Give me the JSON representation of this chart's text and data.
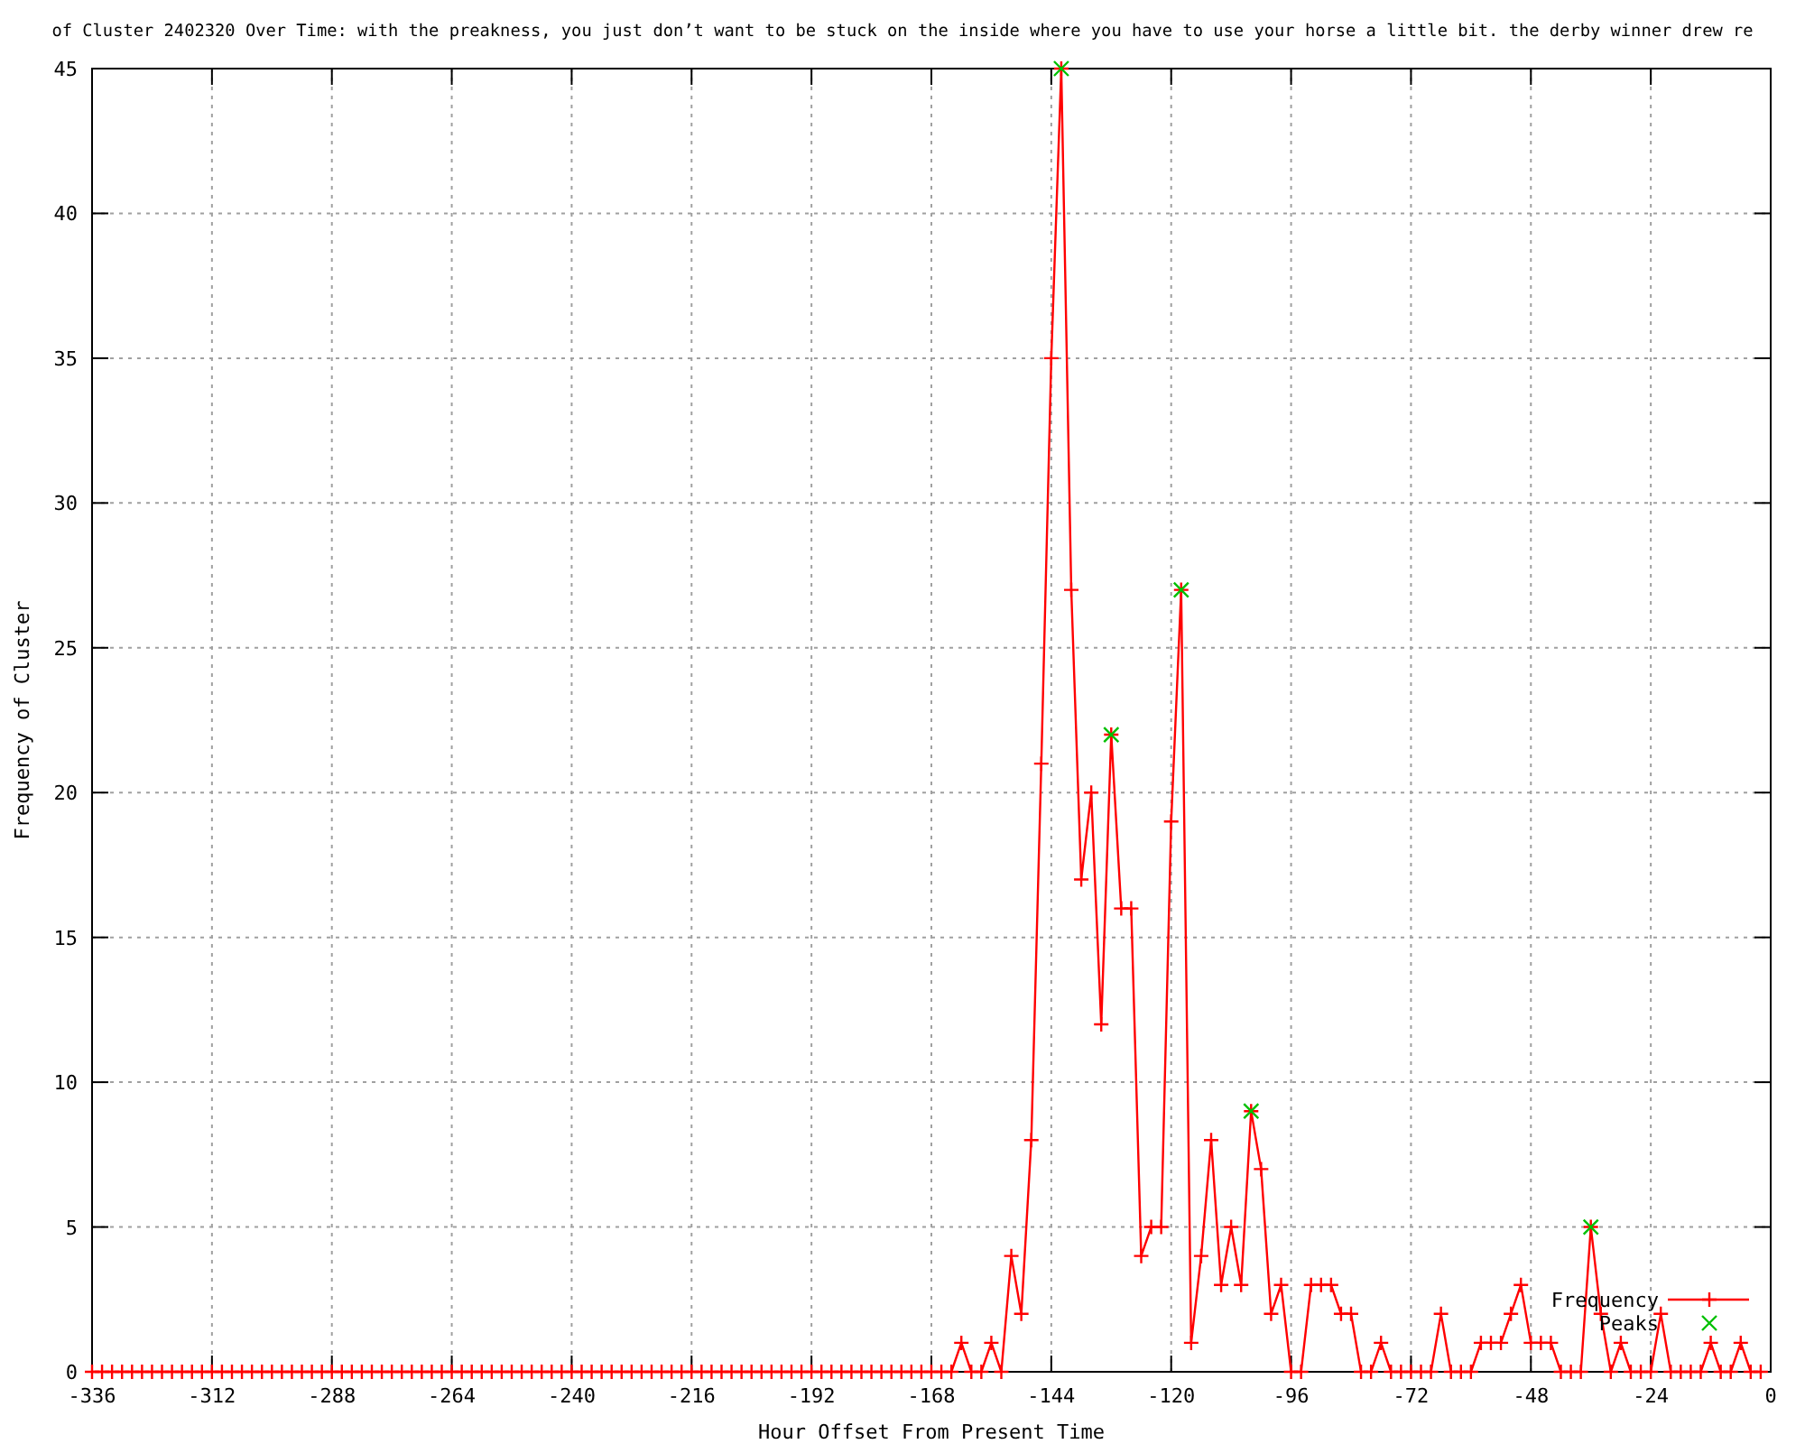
{
  "chart_data": {
    "type": "line",
    "title": "of Cluster 2402320 Over Time: with the preakness, you just don’t want to be stuck on the inside where you have to use your horse a little bit. the derby winner drew re",
    "xlabel": "Hour Offset From Present Time",
    "ylabel": "Frequency of Cluster",
    "x": [
      -336,
      -334,
      -332,
      -330,
      -328,
      -326,
      -324,
      -322,
      -320,
      -318,
      -316,
      -314,
      -312,
      -310,
      -308,
      -306,
      -304,
      -302,
      -300,
      -298,
      -296,
      -294,
      -292,
      -290,
      -288,
      -286,
      -284,
      -282,
      -280,
      -278,
      -276,
      -274,
      -272,
      -270,
      -268,
      -266,
      -264,
      -262,
      -260,
      -258,
      -256,
      -254,
      -252,
      -250,
      -248,
      -246,
      -244,
      -242,
      -240,
      -238,
      -236,
      -234,
      -232,
      -230,
      -228,
      -226,
      -224,
      -222,
      -220,
      -218,
      -216,
      -214,
      -212,
      -210,
      -208,
      -206,
      -204,
      -202,
      -200,
      -198,
      -196,
      -194,
      -192,
      -190,
      -188,
      -186,
      -184,
      -182,
      -180,
      -178,
      -176,
      -174,
      -172,
      -170,
      -168,
      -166,
      -164,
      -162,
      -160,
      -158,
      -156,
      -154,
      -152,
      -150,
      -148,
      -146,
      -144,
      -142,
      -140,
      -138,
      -136,
      -134,
      -132,
      -130,
      -128,
      -126,
      -124,
      -122,
      -120,
      -118,
      -116,
      -114,
      -112,
      -110,
      -108,
      -106,
      -104,
      -102,
      -100,
      -98,
      -96,
      -94,
      -92,
      -90,
      -88,
      -86,
      -84,
      -82,
      -80,
      -78,
      -76,
      -74,
      -72,
      -70,
      -68,
      -66,
      -64,
      -62,
      -60,
      -58,
      -56,
      -54,
      -52,
      -50,
      -48,
      -46,
      -44,
      -42,
      -40,
      -38,
      -36,
      -34,
      -32,
      -30,
      -28,
      -26,
      -24,
      -22,
      -20,
      -18,
      -16,
      -14,
      -12,
      -10,
      -8,
      -6,
      -4,
      -2
    ],
    "series": [
      {
        "name": "Frequency",
        "color": "#ff0000",
        "values": [
          0,
          0,
          0,
          0,
          0,
          0,
          0,
          0,
          0,
          0,
          0,
          0,
          0,
          0,
          0,
          0,
          0,
          0,
          0,
          0,
          0,
          0,
          0,
          0,
          0,
          0,
          0,
          0,
          0,
          0,
          0,
          0,
          0,
          0,
          0,
          0,
          0,
          0,
          0,
          0,
          0,
          0,
          0,
          0,
          0,
          0,
          0,
          0,
          0,
          0,
          0,
          0,
          0,
          0,
          0,
          0,
          0,
          0,
          0,
          0,
          0,
          0,
          0,
          0,
          0,
          0,
          0,
          0,
          0,
          0,
          0,
          0,
          0,
          0,
          0,
          0,
          0,
          0,
          0,
          0,
          0,
          0,
          0,
          0,
          0,
          0,
          0,
          1,
          0,
          0,
          1,
          0,
          4,
          2,
          8,
          21,
          35,
          45,
          27,
          17,
          20,
          12,
          22,
          16,
          16,
          4,
          5,
          5,
          19,
          27,
          1,
          4,
          8,
          3,
          5,
          3,
          9,
          7,
          2,
          3,
          0,
          0,
          3,
          3,
          3,
          2,
          2,
          0,
          0,
          1,
          0,
          0,
          0,
          0,
          0,
          2,
          0,
          0,
          0,
          1,
          1,
          1,
          2,
          3,
          1,
          1,
          1,
          0,
          0,
          0,
          5,
          2,
          0,
          1,
          0,
          0,
          0,
          2,
          0,
          0,
          0,
          0,
          1,
          0,
          0,
          1,
          0,
          0
        ]
      },
      {
        "name": "Peaks",
        "color": "#00c000",
        "type": "scatter",
        "x": [
          -142,
          -132,
          -118,
          -104,
          -36
        ],
        "values": [
          45,
          22,
          27,
          9,
          5
        ]
      }
    ],
    "xlim": [
      -336,
      0
    ],
    "xticks": [
      -336,
      -312,
      -288,
      -264,
      -240,
      -216,
      -192,
      -168,
      -144,
      -120,
      -96,
      -72,
      -48,
      -24,
      0
    ],
    "ylim": [
      0,
      45
    ],
    "yticks": [
      0,
      5,
      10,
      15,
      20,
      25,
      30,
      35,
      40,
      45
    ],
    "grid": true,
    "legend": "bottom right",
    "marker": "cross"
  }
}
